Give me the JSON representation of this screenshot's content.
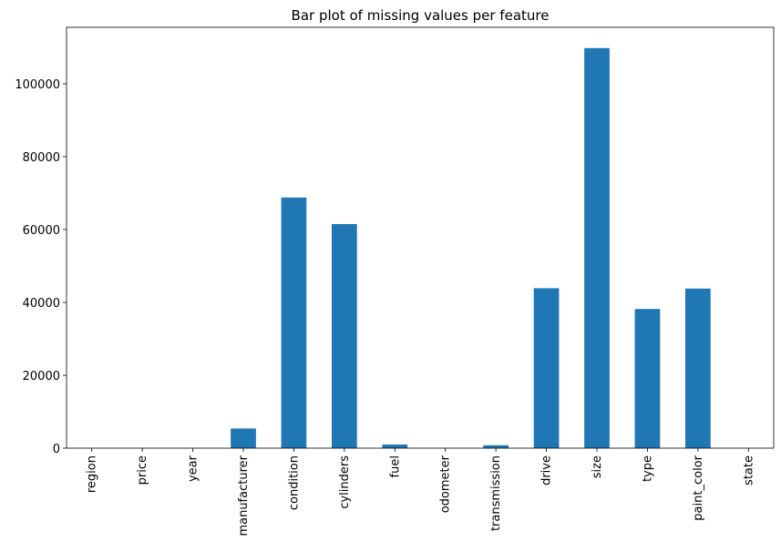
{
  "chart_data": {
    "type": "bar",
    "title": "Bar plot of missing values per feature",
    "xlabel": "",
    "ylabel": "",
    "categories": [
      "region",
      "price",
      "year",
      "manufacturer",
      "condition",
      "cylinders",
      "fuel",
      "odometer",
      "transmission",
      "drive",
      "size",
      "type",
      "paint_color",
      "state"
    ],
    "values": [
      0,
      0,
      0,
      5400,
      68800,
      61500,
      1000,
      0,
      800,
      43900,
      109800,
      38200,
      43800,
      0
    ],
    "ylim": [
      0,
      115500
    ],
    "yticks": [
      0,
      20000,
      40000,
      60000,
      80000,
      100000
    ],
    "ytick_labels": [
      "0",
      "20000",
      "40000",
      "60000",
      "80000",
      "100000"
    ],
    "grid": false,
    "legend": "none",
    "colors": {
      "bar": "#1f77b4",
      "axis": "#000000",
      "background": "#ffffff"
    }
  }
}
